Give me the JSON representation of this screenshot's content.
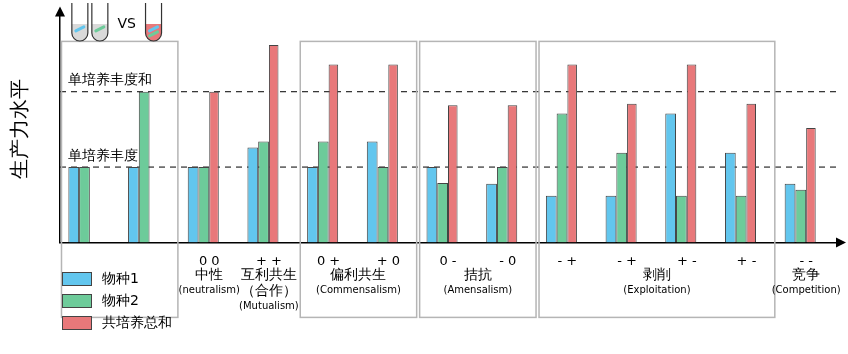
{
  "chart_data": {
    "type": "bar",
    "y_label": "生产力水平",
    "categories": [
      null,
      null,
      "0 0",
      "+ +",
      "0 +",
      "+ 0",
      "0 -",
      "- 0",
      "- +",
      "- +",
      "+ -",
      "+ -",
      "- -"
    ],
    "groups": [
      {
        "label": null,
        "label_en": null,
        "count": 2
      },
      {
        "label": "中性",
        "label_en": "(neutralism)",
        "count": 1
      },
      {
        "label": "互利共生\n（合作）",
        "label_en": "(Mutualism)",
        "count": 1
      },
      {
        "label": "偏利共生",
        "label_en": "(Commensalism)",
        "count": 2
      },
      {
        "label": "拮抗",
        "label_en": "(Amensalism)",
        "count": 2
      },
      {
        "label": "剥削",
        "label_en": "(Exploitation)",
        "count": 4
      },
      {
        "label": "竞争",
        "label_en": "(Competition)",
        "count": 1
      }
    ],
    "series": [
      {
        "name": "物种1",
        "color": "#62c6ee",
        "values": [
          1,
          1,
          1,
          1.26,
          1,
          1.34,
          1,
          0.78,
          0.62,
          0.62,
          1.71,
          1.19,
          0.78
        ]
      },
      {
        "name": "物种2",
        "color": "#6dcb9a",
        "values": [
          1,
          2,
          1,
          1.34,
          1.34,
          1,
          0.79,
          1,
          1.71,
          1.19,
          0.62,
          0.62,
          0.7
        ]
      },
      {
        "name": "共培养总和",
        "color": "#e8787a",
        "values": [
          null,
          null,
          2,
          2.62,
          2.36,
          2.36,
          1.82,
          1.82,
          2.36,
          1.84,
          2.36,
          1.84,
          1.52
        ]
      }
    ],
    "ylim": [
      0,
      3
    ],
    "yticks": [
      {
        "value": 1,
        "label": "单培养丰度"
      },
      {
        "value": 2,
        "label": "单培养丰度和"
      }
    ],
    "grid": true,
    "legend": "lower left",
    "annotations": [
      {
        "text": "VS"
      }
    ]
  }
}
